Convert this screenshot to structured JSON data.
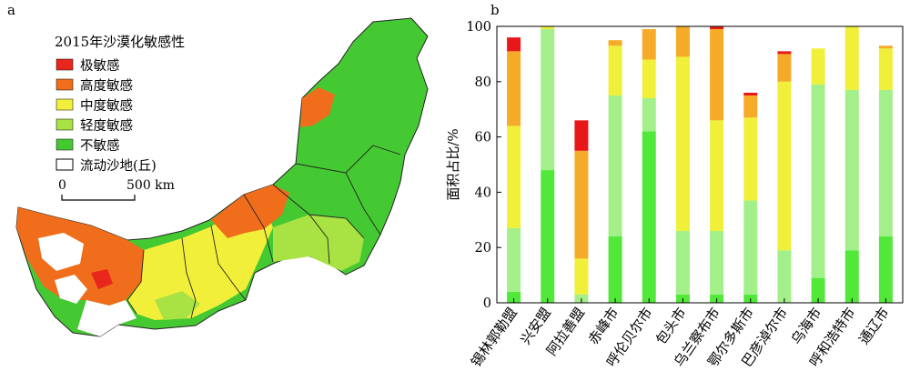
{
  "panel_a": {
    "label": "a",
    "legend_title": "2015年沙漠化敏感性",
    "legend_items": [
      {
        "label": "极敏感",
        "color": "#e8261b"
      },
      {
        "label": "高度敏感",
        "color": "#f06d1c"
      },
      {
        "label": "中度敏感",
        "color": "#f2ef3a"
      },
      {
        "label": "轻度敏感",
        "color": "#a9e343"
      },
      {
        "label": "不敏感",
        "color": "#45c932"
      },
      {
        "label": "流动沙地(丘)",
        "color": "#ffffff"
      }
    ],
    "scale_zero": "0",
    "scale_label": "500 km"
  },
  "chart_data": {
    "type": "bar",
    "stacked": true,
    "panel_label": "b",
    "title": "",
    "xlabel": "",
    "ylabel": "面积占比/%",
    "ylim": [
      0,
      100
    ],
    "yticks": [
      0,
      20,
      40,
      60,
      80,
      100
    ],
    "grid": false,
    "categories": [
      "锡林郭勒盟",
      "兴安盟",
      "阿拉善盟",
      "赤峰市",
      "呼伦贝尔市",
      "包头市",
      "乌兰察布市",
      "鄂尔多斯市",
      "巴彦淖尔市",
      "乌海市",
      "呼和浩特市",
      "通辽市"
    ],
    "series": [
      {
        "name": "不敏感",
        "color": "#52e83a",
        "values": [
          4,
          48,
          0,
          24,
          62,
          3,
          3,
          3,
          0,
          9,
          19,
          24
        ]
      },
      {
        "name": "轻度敏感",
        "color": "#a3f08a",
        "values": [
          23,
          51,
          3,
          51,
          12,
          23,
          23,
          34,
          19,
          70,
          58,
          53
        ]
      },
      {
        "name": "中度敏感",
        "color": "#f0f03a",
        "values": [
          37,
          1,
          13,
          18,
          14,
          63,
          40,
          30,
          61,
          13,
          23,
          15
        ]
      },
      {
        "name": "高度敏感",
        "color": "#f5ab28",
        "values": [
          27,
          0,
          39,
          2,
          11,
          11,
          33,
          8,
          10,
          0,
          0,
          1
        ]
      },
      {
        "name": "极敏感",
        "color": "#e8171a",
        "values": [
          5,
          0,
          11,
          0,
          0,
          0,
          1,
          1,
          1,
          0,
          0,
          0
        ]
      }
    ]
  }
}
